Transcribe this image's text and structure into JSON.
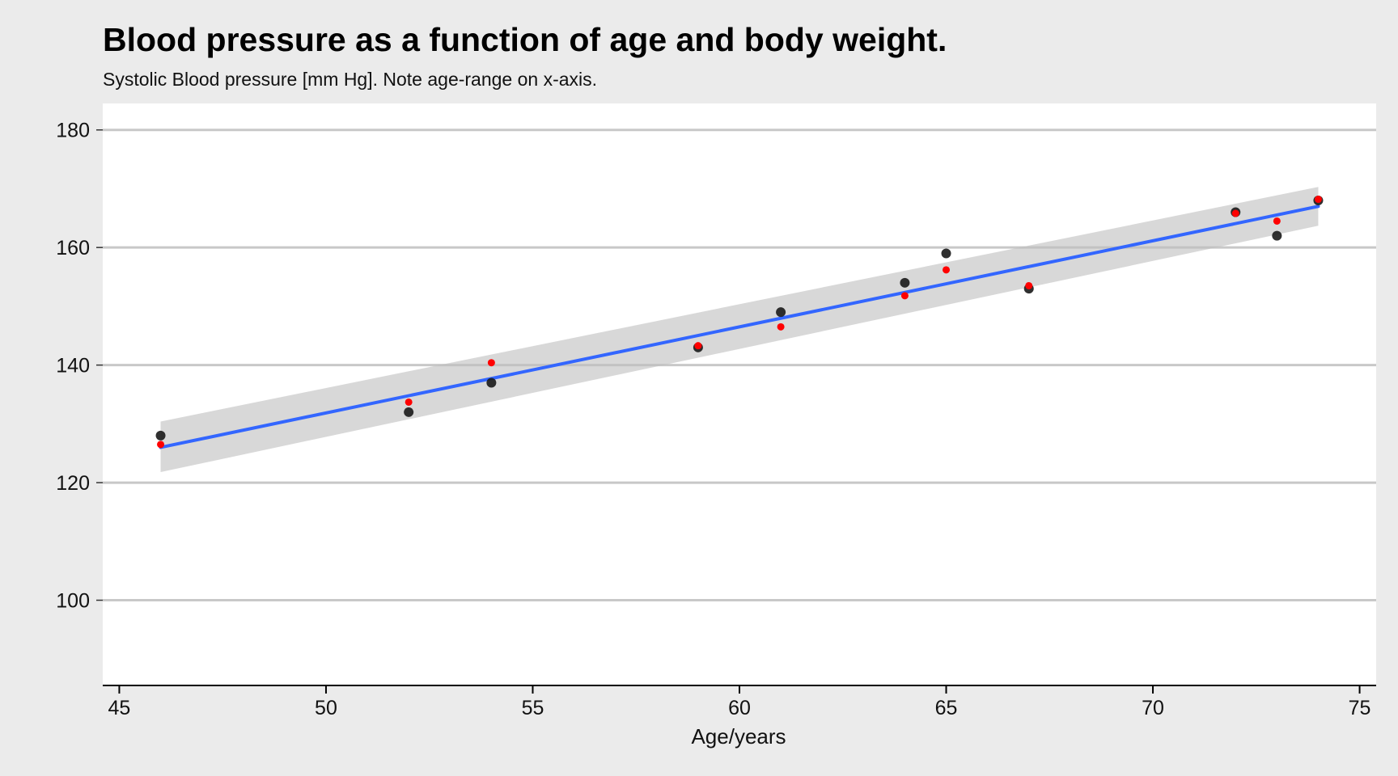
{
  "chart_data": {
    "type": "scatter",
    "title": "Blood pressure as a function of age and body weight.",
    "subtitle": "Systolic Blood pressure [mm Hg]. Note age-range on x-axis.",
    "xlabel": "Age/years",
    "ylabel": "",
    "xlim": [
      44.6,
      75.4
    ],
    "ylim": [
      85.5,
      184.5
    ],
    "xticks": [
      45,
      50,
      55,
      60,
      65,
      70,
      75
    ],
    "yticks": [
      100,
      120,
      140,
      160,
      180
    ],
    "grid": "horizontal",
    "colors": {
      "background": "#ebebeb",
      "panel": "#ffffff",
      "gridline": "#c8c8c8",
      "observed": "#1a1a1a",
      "fitted": "#ff0000",
      "trend": "#3366ff",
      "ribbon": "#bebebe"
    },
    "series": [
      {
        "x": [
          46,
          52,
          54,
          59,
          61,
          64,
          65,
          67,
          72,
          73,
          74
        ],
        "values": [
          128,
          132,
          137,
          143,
          149,
          154,
          159,
          153,
          166,
          162,
          168
        ]
      },
      {
        "x": [
          46,
          52,
          54,
          59,
          61,
          64,
          65,
          67,
          72,
          73,
          74
        ],
        "values": [
          126.5,
          133.7,
          140.4,
          143.3,
          146.5,
          151.8,
          156.2,
          153.5,
          165.8,
          164.5,
          168.2
        ]
      }
    ],
    "trend": {
      "type": "linear",
      "x": [
        46,
        74
      ],
      "values": [
        126.0,
        167.0
      ],
      "ci_lower": [
        121.8,
        163.7
      ],
      "ci_upper": [
        130.4,
        170.3
      ]
    }
  }
}
